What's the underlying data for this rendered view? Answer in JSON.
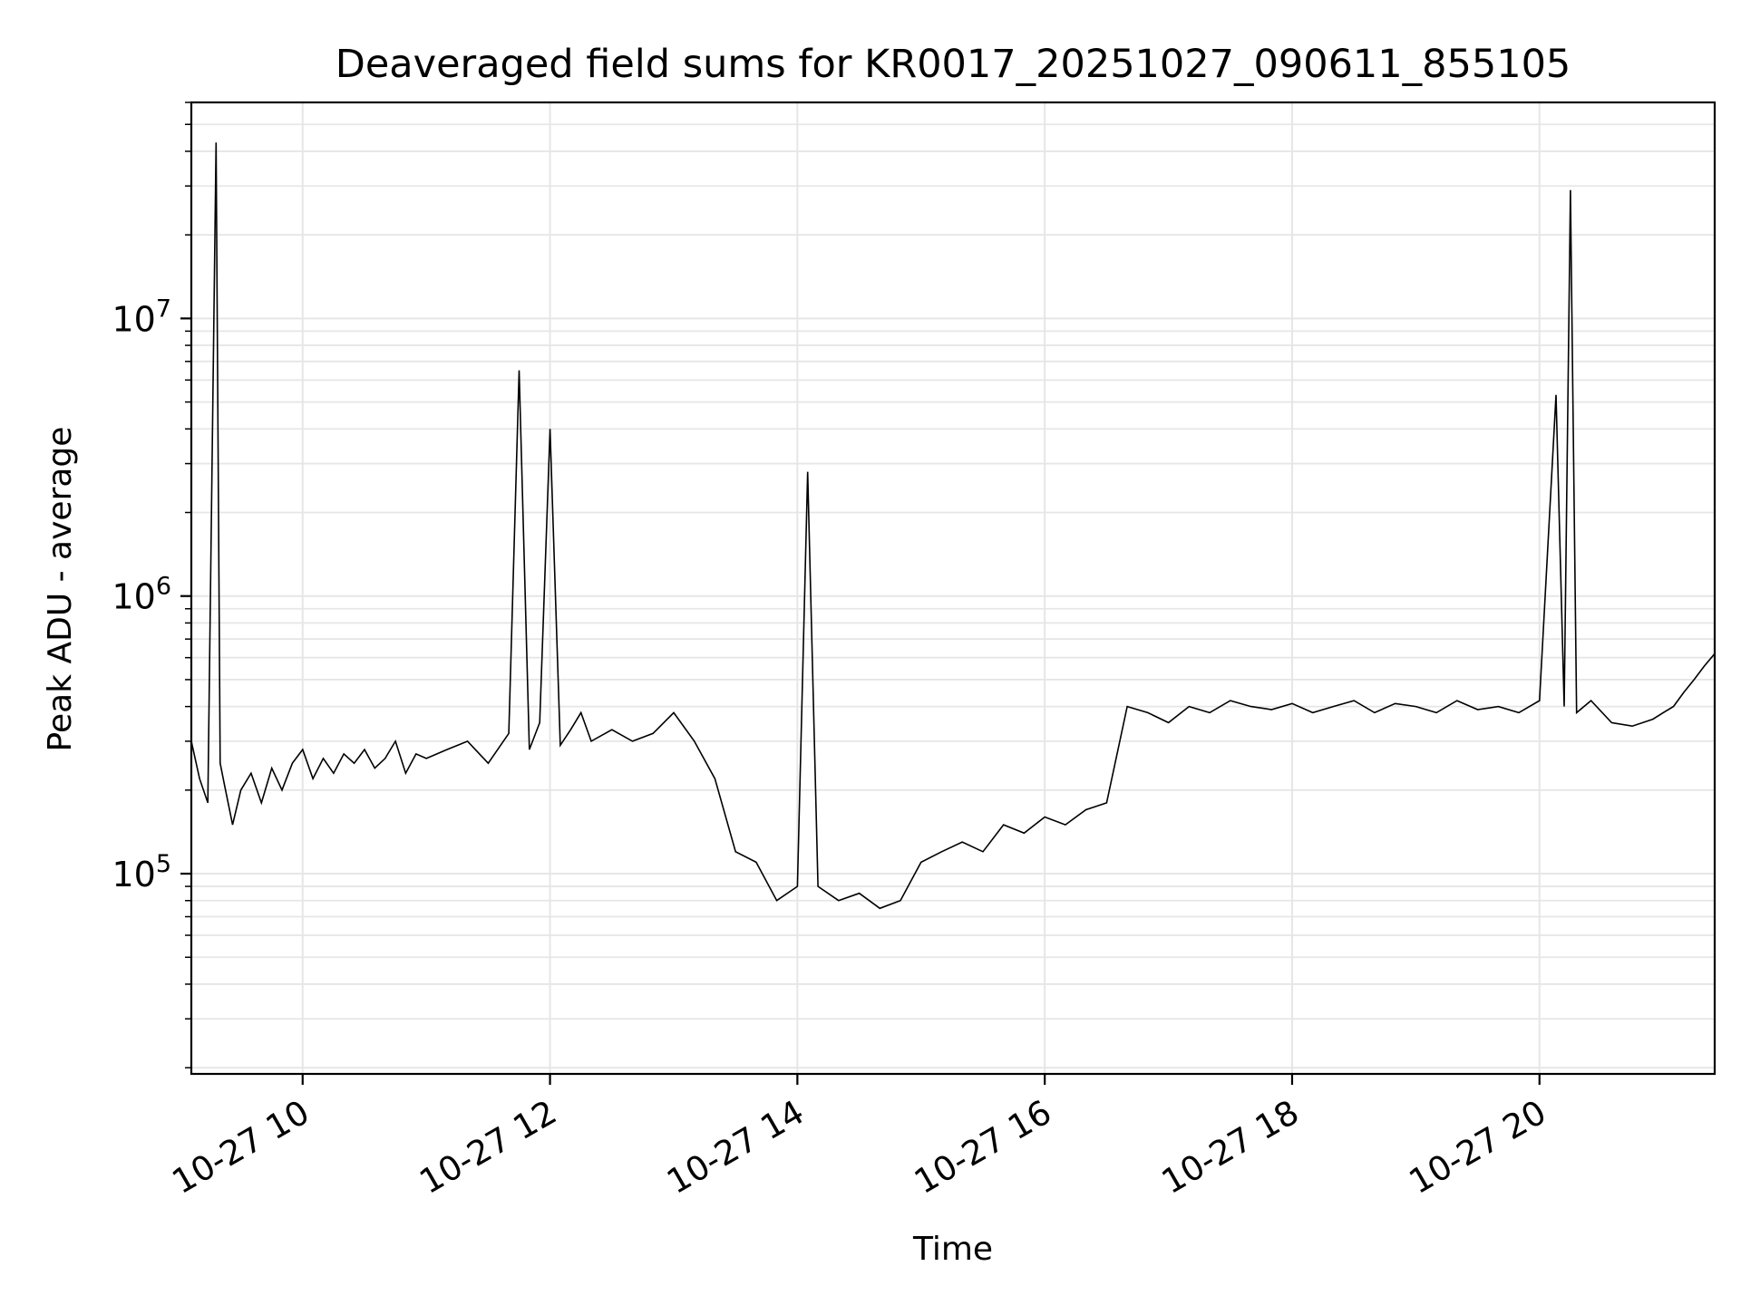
{
  "chart_data": {
    "type": "line",
    "title": "Deaveraged field sums for KR0017_20251027_090611_855105",
    "xlabel": "Time",
    "ylabel": "Peak ADU - average",
    "x_tick_labels": [
      "10-27 10",
      "10-27 12",
      "10-27 14",
      "10-27 16",
      "10-27 18",
      "10-27 20"
    ],
    "y_tick_labels": [
      "10^7",
      "10^6",
      "10^5"
    ],
    "y_scale": "log",
    "xlim": [
      "2025-10-27 09:06",
      "2025-10-27 21:25"
    ],
    "ylim": [
      19000,
      60000000
    ],
    "grid": true,
    "line_color": "#000000",
    "grid_color": "#e6e6e6",
    "series": [
      {
        "x": [
          "2025-10-27 09:06",
          "2025-10-27 09:10",
          "2025-10-27 09:14",
          "2025-10-27 09:18",
          "2025-10-27 09:20",
          "2025-10-27 09:22",
          "2025-10-27 09:26",
          "2025-10-27 09:30",
          "2025-10-27 09:35",
          "2025-10-27 09:40",
          "2025-10-27 09:45",
          "2025-10-27 09:50",
          "2025-10-27 09:55",
          "2025-10-27 10:00",
          "2025-10-27 10:05",
          "2025-10-27 10:10",
          "2025-10-27 10:15",
          "2025-10-27 10:20",
          "2025-10-27 10:25",
          "2025-10-27 10:30",
          "2025-10-27 10:35",
          "2025-10-27 10:40",
          "2025-10-27 10:45",
          "2025-10-27 10:50",
          "2025-10-27 10:55",
          "2025-10-27 11:00",
          "2025-10-27 11:10",
          "2025-10-27 11:20",
          "2025-10-27 11:30",
          "2025-10-27 11:40",
          "2025-10-27 11:45",
          "2025-10-27 11:50",
          "2025-10-27 11:55",
          "2025-10-27 12:00",
          "2025-10-27 12:05",
          "2025-10-27 12:10",
          "2025-10-27 12:15",
          "2025-10-27 12:20",
          "2025-10-27 12:30",
          "2025-10-27 12:40",
          "2025-10-27 12:50",
          "2025-10-27 13:00",
          "2025-10-27 13:10",
          "2025-10-27 13:20",
          "2025-10-27 13:30",
          "2025-10-27 13:40",
          "2025-10-27 13:50",
          "2025-10-27 14:00",
          "2025-10-27 14:05",
          "2025-10-27 14:10",
          "2025-10-27 14:20",
          "2025-10-27 14:30",
          "2025-10-27 14:40",
          "2025-10-27 14:50",
          "2025-10-27 15:00",
          "2025-10-27 15:10",
          "2025-10-27 15:20",
          "2025-10-27 15:30",
          "2025-10-27 15:40",
          "2025-10-27 15:50",
          "2025-10-27 16:00",
          "2025-10-27 16:10",
          "2025-10-27 16:20",
          "2025-10-27 16:30",
          "2025-10-27 16:40",
          "2025-10-27 16:50",
          "2025-10-27 17:00",
          "2025-10-27 17:10",
          "2025-10-27 17:20",
          "2025-10-27 17:30",
          "2025-10-27 17:40",
          "2025-10-27 17:50",
          "2025-10-27 18:00",
          "2025-10-27 18:10",
          "2025-10-27 18:20",
          "2025-10-27 18:30",
          "2025-10-27 18:40",
          "2025-10-27 18:50",
          "2025-10-27 19:00",
          "2025-10-27 19:10",
          "2025-10-27 19:20",
          "2025-10-27 19:30",
          "2025-10-27 19:40",
          "2025-10-27 19:50",
          "2025-10-27 20:00",
          "2025-10-27 20:08",
          "2025-10-27 20:12",
          "2025-10-27 20:15",
          "2025-10-27 20:18",
          "2025-10-27 20:25",
          "2025-10-27 20:35",
          "2025-10-27 20:45",
          "2025-10-27 20:55",
          "2025-10-27 21:00",
          "2025-10-27 21:05",
          "2025-10-27 21:10",
          "2025-10-27 21:15",
          "2025-10-27 21:20",
          "2025-10-27 21:25"
        ],
        "y": [
          300000,
          220000,
          180000,
          43000000,
          250000,
          210000,
          150000,
          200000,
          230000,
          180000,
          240000,
          200000,
          250000,
          280000,
          220000,
          260000,
          230000,
          270000,
          250000,
          280000,
          240000,
          260000,
          300000,
          230000,
          270000,
          260000,
          280000,
          300000,
          250000,
          320000,
          6500000,
          280000,
          350000,
          4000000,
          290000,
          330000,
          380000,
          300000,
          330000,
          300000,
          320000,
          380000,
          300000,
          220000,
          120000,
          110000,
          80000,
          90000,
          2800000,
          90000,
          80000,
          85000,
          75000,
          80000,
          110000,
          120000,
          130000,
          120000,
          150000,
          140000,
          160000,
          150000,
          170000,
          180000,
          400000,
          380000,
          350000,
          400000,
          380000,
          420000,
          400000,
          390000,
          410000,
          380000,
          400000,
          420000,
          380000,
          410000,
          400000,
          380000,
          420000,
          390000,
          400000,
          380000,
          420000,
          5300000,
          400000,
          29000000,
          380000,
          420000,
          350000,
          340000,
          360000,
          380000,
          400000,
          450000,
          500000,
          560000,
          620000
        ]
      }
    ]
  }
}
